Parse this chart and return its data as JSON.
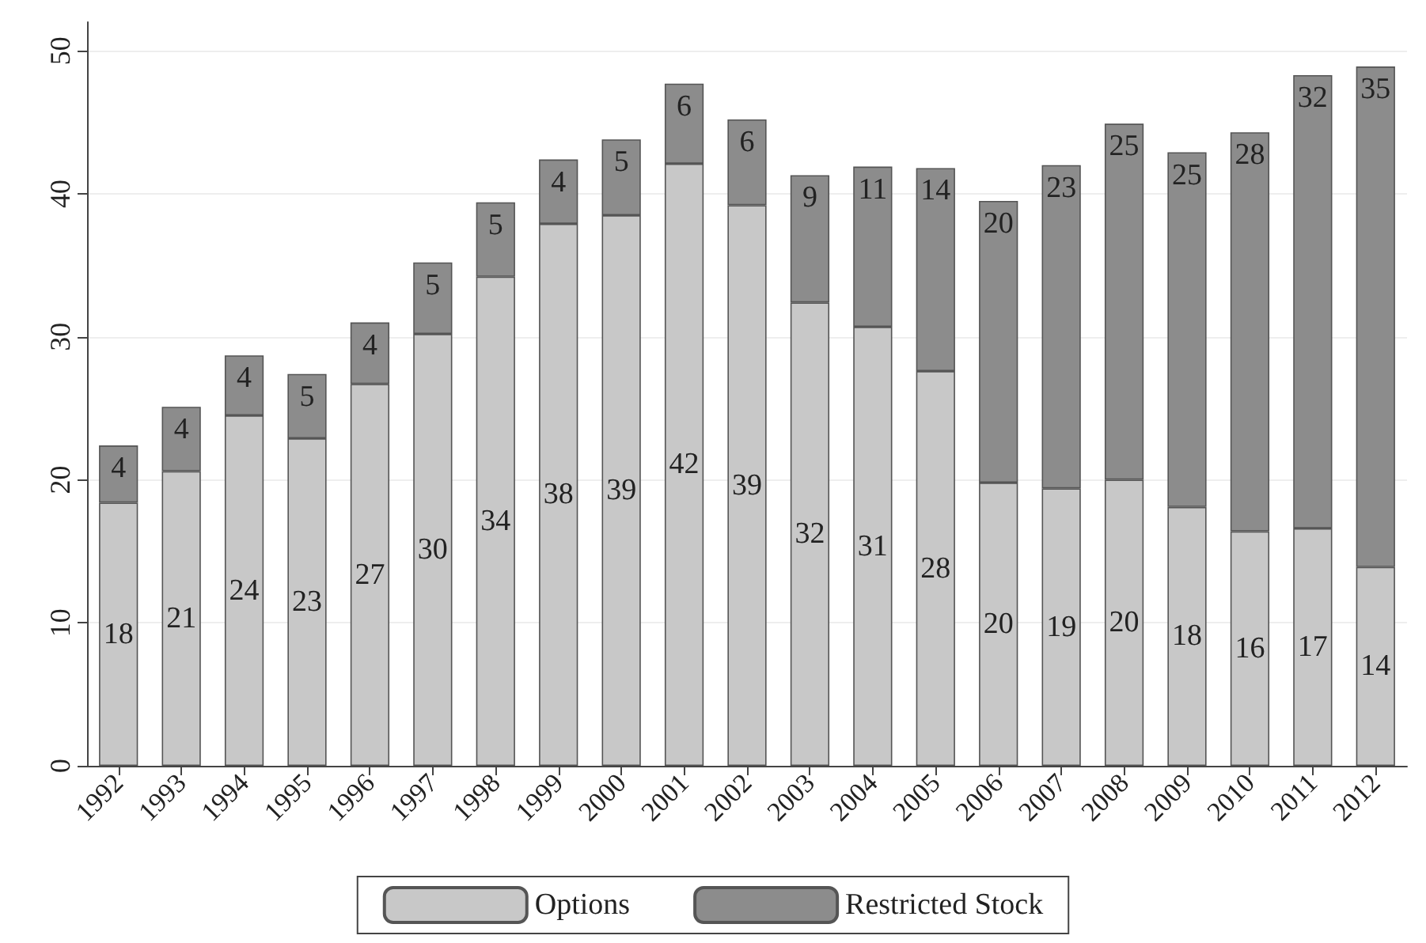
{
  "chart_data": {
    "type": "bar",
    "stacked": true,
    "categories": [
      "1992",
      "1993",
      "1994",
      "1995",
      "1996",
      "1997",
      "1998",
      "1999",
      "2000",
      "2001",
      "2002",
      "2003",
      "2004",
      "2005",
      "2006",
      "2007",
      "2008",
      "2009",
      "2010",
      "2011",
      "2012"
    ],
    "series": [
      {
        "name": "Options",
        "color": "#c8c8c8",
        "values": [
          18.4,
          20.6,
          24.5,
          22.9,
          26.7,
          30.2,
          34.2,
          37.9,
          38.5,
          42.1,
          39.2,
          32.4,
          30.7,
          27.6,
          19.8,
          19.4,
          20.0,
          18.1,
          16.4,
          16.6,
          13.9
        ],
        "value_labels": [
          "18",
          "21",
          "24",
          "23",
          "27",
          "30",
          "34",
          "38",
          "39",
          "42",
          "39",
          "32",
          "31",
          "28",
          "20",
          "19",
          "20",
          "18",
          "16",
          "17",
          "14"
        ]
      },
      {
        "name": "Restricted Stock",
        "color": "#8c8c8c",
        "values": [
          4.0,
          4.5,
          4.2,
          4.5,
          4.3,
          5.0,
          5.2,
          4.5,
          5.3,
          5.6,
          6.0,
          8.9,
          11.2,
          14.2,
          19.7,
          22.6,
          24.9,
          24.8,
          27.9,
          31.7,
          35.0
        ],
        "value_labels": [
          "4",
          "4",
          "4",
          "5",
          "4",
          "5",
          "5",
          "4",
          "5",
          "6",
          "6",
          "9",
          "11",
          "14",
          "20",
          "23",
          "25",
          "25",
          "28",
          "32",
          "35"
        ]
      }
    ],
    "ylim": [
      0,
      52
    ],
    "yticks": [
      0,
      10,
      20,
      30,
      40,
      50
    ],
    "grid": "y",
    "legend": "bottom"
  }
}
